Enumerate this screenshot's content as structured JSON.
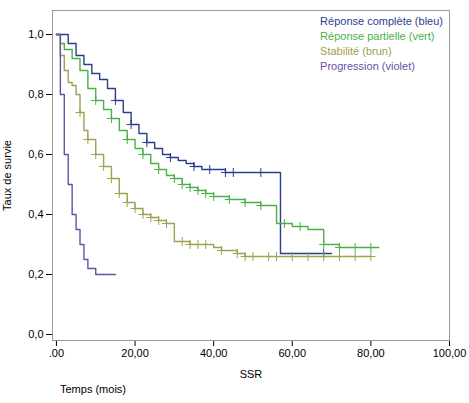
{
  "chart_data": {
    "type": "step",
    "xlabel": "SSR",
    "ylabel": "Taux de survie",
    "annotations": [
      {
        "text": "Temps (mois)"
      }
    ],
    "xlim": [
      -1,
      100
    ],
    "ylim": [
      -0.02,
      1.08
    ],
    "xticks": [
      {
        "value": 0,
        "label": ".00"
      },
      {
        "value": 20,
        "label": "20,00"
      },
      {
        "value": 40,
        "label": "40,00"
      },
      {
        "value": 60,
        "label": "60,00"
      },
      {
        "value": 80,
        "label": "80,00"
      },
      {
        "value": 100,
        "label": "100,00"
      }
    ],
    "yticks": [
      {
        "value": 0.0,
        "label": "0,0"
      },
      {
        "value": 0.2,
        "label": "0,2"
      },
      {
        "value": 0.4,
        "label": "0,4"
      },
      {
        "value": 0.6,
        "label": "0,6"
      },
      {
        "value": 0.8,
        "label": "0,8"
      },
      {
        "value": 1.0,
        "label": "1,0"
      }
    ],
    "grid": false,
    "legend": "upper right",
    "marker": "plus",
    "series": [
      {
        "name": "Réponse complète (bleu)",
        "color": "#2b3d8f",
        "x": [
          0,
          1,
          3,
          5,
          7,
          9,
          11,
          13,
          15,
          17,
          19,
          21,
          23,
          25,
          27,
          29,
          31,
          33,
          35,
          37,
          39,
          41,
          43,
          45,
          47,
          48,
          50,
          52,
          54,
          56,
          57,
          68,
          70
        ],
        "values": [
          1.0,
          1.0,
          0.97,
          0.93,
          0.9,
          0.87,
          0.85,
          0.82,
          0.78,
          0.74,
          0.7,
          0.67,
          0.64,
          0.62,
          0.6,
          0.59,
          0.58,
          0.57,
          0.56,
          0.55,
          0.55,
          0.55,
          0.54,
          0.54,
          0.54,
          0.54,
          0.54,
          0.54,
          0.54,
          0.54,
          0.27,
          0.27,
          0.27
        ],
        "censor_x": [
          15,
          19,
          23,
          29,
          35,
          39,
          43,
          45,
          52,
          68
        ],
        "censor_values": [
          0.78,
          0.7,
          0.64,
          0.59,
          0.56,
          0.55,
          0.54,
          0.54,
          0.54,
          0.27
        ]
      },
      {
        "name": "Réponse partielle (vert)",
        "color": "#4cb04a",
        "x": [
          0,
          1,
          2,
          4,
          6,
          8,
          10,
          12,
          14,
          16,
          18,
          20,
          22,
          24,
          26,
          28,
          30,
          32,
          34,
          36,
          38,
          40,
          42,
          44,
          46,
          48,
          50,
          52,
          54,
          56,
          58,
          60,
          62,
          64,
          68,
          70,
          72,
          74,
          76,
          78,
          80,
          82
        ],
        "values": [
          1.0,
          0.97,
          0.95,
          0.92,
          0.88,
          0.82,
          0.78,
          0.75,
          0.72,
          0.68,
          0.65,
          0.62,
          0.6,
          0.57,
          0.55,
          0.53,
          0.52,
          0.5,
          0.49,
          0.48,
          0.47,
          0.46,
          0.46,
          0.45,
          0.45,
          0.44,
          0.44,
          0.43,
          0.43,
          0.37,
          0.37,
          0.36,
          0.36,
          0.35,
          0.3,
          0.3,
          0.29,
          0.29,
          0.29,
          0.29,
          0.29,
          0.29
        ],
        "censor_x": [
          10,
          14,
          18,
          22,
          26,
          30,
          32,
          34,
          36,
          38,
          40,
          44,
          48,
          52,
          58,
          62,
          68,
          72,
          76,
          80
        ],
        "censor_values": [
          0.78,
          0.72,
          0.65,
          0.6,
          0.55,
          0.52,
          0.5,
          0.49,
          0.48,
          0.47,
          0.46,
          0.45,
          0.44,
          0.43,
          0.37,
          0.36,
          0.3,
          0.29,
          0.29,
          0.29
        ]
      },
      {
        "name": "Stabilité (brun)",
        "color": "#a0a050",
        "x": [
          0,
          1,
          2,
          3,
          4,
          5,
          6,
          7,
          8,
          10,
          12,
          14,
          16,
          18,
          20,
          22,
          24,
          26,
          28,
          30,
          32,
          34,
          36,
          38,
          40,
          42,
          44,
          46,
          48,
          50,
          52,
          54,
          56,
          58,
          60,
          62,
          64,
          66,
          68,
          70,
          72,
          74,
          76,
          78,
          80
        ],
        "values": [
          1.0,
          0.93,
          0.88,
          0.84,
          0.83,
          0.8,
          0.74,
          0.68,
          0.65,
          0.6,
          0.56,
          0.52,
          0.47,
          0.44,
          0.42,
          0.4,
          0.39,
          0.38,
          0.37,
          0.31,
          0.31,
          0.3,
          0.3,
          0.3,
          0.29,
          0.28,
          0.28,
          0.27,
          0.26,
          0.26,
          0.26,
          0.26,
          0.26,
          0.26,
          0.26,
          0.26,
          0.26,
          0.26,
          0.26,
          0.26,
          0.26,
          0.26,
          0.26,
          0.26,
          0.26
        ],
        "censor_x": [
          6,
          8,
          10,
          12,
          14,
          16,
          18,
          20,
          22,
          24,
          26,
          28,
          32,
          34,
          36,
          38,
          42,
          46,
          48,
          50,
          54,
          56,
          60,
          64,
          68,
          72,
          76,
          80
        ],
        "censor_values": [
          0.74,
          0.65,
          0.6,
          0.56,
          0.52,
          0.47,
          0.44,
          0.42,
          0.4,
          0.39,
          0.38,
          0.37,
          0.31,
          0.3,
          0.3,
          0.3,
          0.28,
          0.27,
          0.26,
          0.26,
          0.26,
          0.26,
          0.26,
          0.26,
          0.26,
          0.26,
          0.26,
          0.26
        ]
      },
      {
        "name": "Progression (violet)",
        "color": "#6a4fa8",
        "x": [
          0,
          1,
          2,
          3,
          4,
          5,
          6,
          7,
          8,
          10,
          12,
          14,
          15
        ],
        "values": [
          1.0,
          0.8,
          0.6,
          0.5,
          0.4,
          0.35,
          0.3,
          0.25,
          0.22,
          0.2,
          0.2,
          0.2,
          0.2
        ]
      }
    ]
  }
}
